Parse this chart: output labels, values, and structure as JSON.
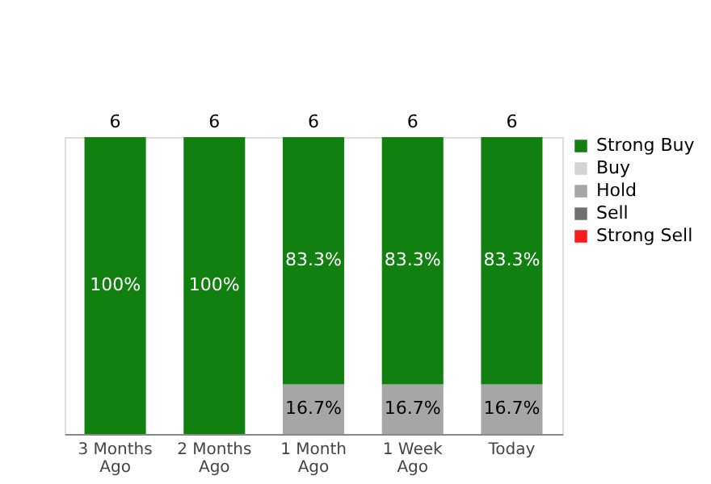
{
  "chart_data": {
    "type": "bar",
    "stacked": true,
    "categories": [
      "3 Months Ago",
      "2 Months Ago",
      "1 Month Ago",
      "1 Week Ago",
      "Today"
    ],
    "legend": "right",
    "series": [
      {
        "name": "Strong Sell",
        "color": "#ff1a1a",
        "values": [
          0,
          0,
          0,
          0,
          0
        ],
        "value_labels": [
          null,
          null,
          null,
          null,
          null
        ]
      },
      {
        "name": "Sell",
        "color": "#707070",
        "values": [
          0,
          0,
          0,
          0,
          0
        ],
        "value_labels": [
          null,
          null,
          null,
          null,
          null
        ]
      },
      {
        "name": "Hold",
        "color": "#a6a6a6",
        "values": [
          0,
          0,
          16.7,
          16.7,
          16.7
        ],
        "value_labels": [
          null,
          null,
          "16.7%",
          "16.7%",
          "16.7%"
        ]
      },
      {
        "name": "Buy",
        "color": "#d3d3d3",
        "values": [
          0,
          0,
          0,
          0,
          0
        ],
        "value_labels": [
          null,
          null,
          null,
          null,
          null
        ]
      },
      {
        "name": "Strong Buy",
        "color": "#118011",
        "values": [
          100,
          100,
          83.3,
          83.3,
          83.3
        ],
        "value_labels": [
          "100%",
          "100%",
          "83.3%",
          "83.3%",
          "83.3%"
        ]
      }
    ],
    "annotations": [
      {
        "text": "6",
        "x": "3 Months Ago",
        "y": 100
      },
      {
        "text": "6",
        "x": "2 Months Ago",
        "y": 100
      },
      {
        "text": "6",
        "x": "1 Month Ago",
        "y": 100
      },
      {
        "text": "6",
        "x": "1 Week Ago",
        "y": 100
      },
      {
        "text": "6",
        "x": "Today",
        "y": 100
      }
    ]
  }
}
